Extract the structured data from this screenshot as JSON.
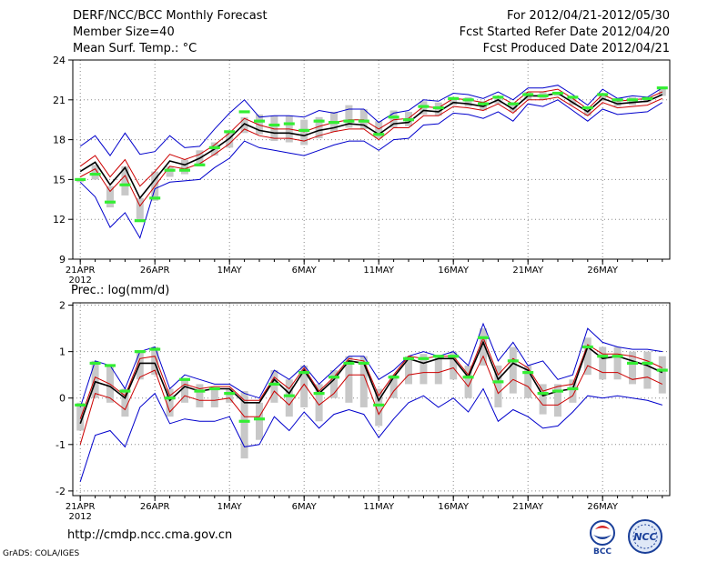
{
  "header": {
    "left": [
      "DERF/NCC/BCC Monthly Forecast",
      "Member Size=40",
      "Mean Surf. Temp.: °C"
    ],
    "right": [
      "For 2012/04/21-2012/05/30",
      "Fcst Started Refer Date 2012/04/20",
      "Fcst Produced Date 2012/04/21"
    ]
  },
  "footer": {
    "url": "http://cmdp.ncc.cma.gov.cn",
    "grads": "GrADS: COLA/IGES"
  },
  "logos": {
    "left": "BCC",
    "right": "NCC"
  },
  "colors": {
    "envelope": "#0000cc",
    "inner": "#cc0000",
    "mean": "#000000",
    "marker": "#33ee33",
    "bar": "#c8c8c8",
    "grid": "#888888"
  },
  "chart_data": [
    {
      "type": "line",
      "title": "Mean Surf. Temp.",
      "ylabel": "°C",
      "ylim": [
        9,
        24
      ],
      "yticks": [
        9,
        12,
        15,
        18,
        21,
        24
      ],
      "xlim": [
        0.5,
        40.5
      ],
      "xticks": [
        {
          "day": 1,
          "label": "21APR",
          "sub": "2012"
        },
        {
          "day": 6,
          "label": "26APR"
        },
        {
          "day": 11,
          "label": "1MAY"
        },
        {
          "day": 16,
          "label": "6MAY"
        },
        {
          "day": 21,
          "label": "11MAY"
        },
        {
          "day": 26,
          "label": "16MAY"
        },
        {
          "day": 31,
          "label": "21MAY"
        },
        {
          "day": 36,
          "label": "26MAY"
        }
      ],
      "x": [
        1,
        2,
        3,
        4,
        5,
        6,
        7,
        8,
        9,
        10,
        11,
        12,
        13,
        14,
        15,
        16,
        17,
        18,
        19,
        20,
        21,
        22,
        23,
        24,
        25,
        26,
        27,
        28,
        29,
        30,
        31,
        32,
        33,
        34,
        35,
        36,
        37,
        38,
        39,
        40
      ],
      "series": [
        {
          "name": "max",
          "values": [
            17.5,
            18.3,
            16.8,
            18.5,
            16.9,
            17.1,
            18.3,
            17.4,
            17.5,
            18.8,
            20,
            21,
            19.7,
            19.8,
            19.8,
            19.7,
            20.2,
            20,
            20.3,
            20.3,
            19.3,
            20,
            20.2,
            21,
            20.9,
            21.5,
            21.4,
            21.1,
            21.6,
            21,
            21.9,
            21.9,
            22.1,
            21.4,
            20.6,
            21.8,
            21.1,
            21.3,
            21.2,
            21.9
          ]
        },
        {
          "name": "upper",
          "values": [
            16,
            16.8,
            15.2,
            16.5,
            14.5,
            15.6,
            16.9,
            16.5,
            16.9,
            17.6,
            18.5,
            19.6,
            19.1,
            18.8,
            18.8,
            18.6,
            19,
            19.3,
            19.5,
            19.5,
            18.8,
            19.5,
            19.6,
            20.5,
            20.4,
            21.1,
            21,
            20.8,
            21.3,
            20.7,
            21.6,
            21.6,
            21.8,
            21.1,
            20.3,
            21.4,
            20.9,
            21,
            21.1,
            21.6
          ]
        },
        {
          "name": "mean",
          "values": [
            15.6,
            16.3,
            14.6,
            15.9,
            13.6,
            15,
            16.4,
            16.1,
            16.6,
            17.3,
            18.1,
            19.2,
            18.7,
            18.5,
            18.5,
            18.3,
            18.7,
            18.9,
            19.2,
            19.1,
            18.4,
            19.2,
            19.3,
            20.2,
            20.1,
            20.8,
            20.7,
            20.5,
            21,
            20.3,
            21.3,
            21.3,
            21.5,
            20.8,
            20.1,
            21.1,
            20.7,
            20.8,
            20.9,
            21.4
          ]
        },
        {
          "name": "lower",
          "values": [
            15.2,
            15.8,
            14.1,
            15.3,
            13,
            14.5,
            16,
            15.8,
            16.2,
            16.9,
            17.7,
            18.8,
            18.3,
            18.1,
            18.1,
            17.9,
            18.3,
            18.6,
            18.8,
            18.8,
            18,
            18.9,
            18.9,
            19.8,
            19.8,
            20.5,
            20.4,
            20.2,
            20.7,
            20,
            21,
            21,
            21.2,
            20.5,
            19.8,
            20.8,
            20.4,
            20.5,
            20.6,
            21.1
          ]
        },
        {
          "name": "min",
          "values": [
            14.8,
            13.7,
            11.4,
            12.5,
            10.6,
            14.3,
            14.8,
            14.9,
            15,
            15.9,
            16.6,
            17.9,
            17.4,
            17.2,
            17,
            16.8,
            17.2,
            17.6,
            17.9,
            17.9,
            17.2,
            18,
            18.1,
            19.1,
            19.2,
            20,
            19.9,
            19.6,
            20.1,
            19.4,
            20.7,
            20.5,
            21,
            20.2,
            19.4,
            20.3,
            19.9,
            20,
            20.1,
            20.8
          ]
        },
        {
          "name": "box_high",
          "values": [
            15.1,
            16.1,
            14.5,
            16,
            13.6,
            15.6,
            16,
            16.5,
            17.2,
            17.8,
            18.6,
            19.7,
            19.9,
            19.8,
            19.8,
            19.5,
            19.7,
            20.1,
            20.6,
            20.3,
            19.4,
            20.2,
            20.1,
            20.9,
            20.8,
            21.2,
            21.2,
            20.9,
            21.3,
            20.8,
            21.6,
            21.6,
            21.6,
            21.2,
            20.5,
            21.5,
            21,
            21.2,
            21.2,
            21.9
          ]
        },
        {
          "name": "box_low",
          "values": [
            14.8,
            15,
            12.9,
            13.8,
            11.8,
            13.4,
            15.2,
            15.4,
            16,
            16.8,
            17.4,
            18.5,
            18.4,
            17.9,
            17.8,
            17.6,
            18.1,
            18.6,
            18.9,
            18.8,
            18.1,
            18.9,
            19,
            19.9,
            19.8,
            20.6,
            20.5,
            20.2,
            20.7,
            20.1,
            21,
            21,
            21.3,
            20.6,
            19.8,
            20.9,
            20.5,
            20.6,
            20.8,
            21.3
          ]
        },
        {
          "name": "marker",
          "values": [
            15,
            15.4,
            13.3,
            14.6,
            11.9,
            13.6,
            15.7,
            15.7,
            16.1,
            17.4,
            18.6,
            20.1,
            19.4,
            19.1,
            19.2,
            18.7,
            19.4,
            19.3,
            19.4,
            19.4,
            18.4,
            19.7,
            19.5,
            20.5,
            20.4,
            21.1,
            21,
            20.7,
            21.2,
            20.7,
            21.4,
            21.3,
            21.5,
            21.2,
            20.4,
            21.4,
            21,
            21,
            21.1,
            21.9
          ]
        }
      ]
    },
    {
      "type": "line",
      "title": "Prec.: log(mm/d)",
      "ylabel": "log(mm/d)",
      "ylim": [
        -2.1,
        2.05
      ],
      "yticks": [
        -2,
        -1,
        0,
        1,
        2
      ],
      "xlim": [
        0.5,
        40.5
      ],
      "xticks": [
        {
          "day": 1,
          "label": "21APR",
          "sub": "2012"
        },
        {
          "day": 6,
          "label": "26APR"
        },
        {
          "day": 11,
          "label": "1MAY"
        },
        {
          "day": 16,
          "label": "6MAY"
        },
        {
          "day": 21,
          "label": "11MAY"
        },
        {
          "day": 26,
          "label": "16MAY"
        },
        {
          "day": 31,
          "label": "21MAY"
        },
        {
          "day": 36,
          "label": "26MAY"
        }
      ],
      "x": [
        1,
        2,
        3,
        4,
        5,
        6,
        7,
        8,
        9,
        10,
        11,
        12,
        13,
        14,
        15,
        16,
        17,
        18,
        19,
        20,
        21,
        22,
        23,
        24,
        25,
        26,
        27,
        28,
        29,
        30,
        31,
        32,
        33,
        34,
        35,
        36,
        37,
        38,
        39,
        40
      ],
      "series": [
        {
          "name": "max",
          "values": [
            -0.2,
            0.8,
            0.7,
            0.2,
            1,
            1.1,
            0.2,
            0.5,
            0.4,
            0.3,
            0.3,
            0.1,
            0,
            0.6,
            0.4,
            0.7,
            0.3,
            0.6,
            0.9,
            0.9,
            0.4,
            0.6,
            0.9,
            1,
            0.9,
            1,
            0.7,
            1.6,
            0.8,
            1.2,
            0.7,
            0.8,
            0.4,
            0.5,
            1.5,
            1.2,
            1.1,
            1.05,
            1.05,
            1
          ]
        },
        {
          "name": "upper",
          "values": [
            -0.45,
            0.45,
            0.3,
            0.05,
            0.85,
            0.9,
            0.05,
            0.3,
            0.2,
            0.25,
            0.25,
            -0.05,
            -0.05,
            0.45,
            0.2,
            0.65,
            0.15,
            0.45,
            0.85,
            0.8,
            0.05,
            0.5,
            0.9,
            0.85,
            0.9,
            0.9,
            0.5,
            1.3,
            0.5,
            0.85,
            0.65,
            0.15,
            0.25,
            0.3,
            1.15,
            0.95,
            0.95,
            0.9,
            0.8,
            0.65
          ]
        },
        {
          "name": "mean",
          "values": [
            -0.55,
            0.35,
            0.25,
            0,
            0.75,
            0.75,
            -0.05,
            0.25,
            0.15,
            0.2,
            0.2,
            -0.1,
            -0.1,
            0.4,
            0.1,
            0.6,
            0.1,
            0.4,
            0.8,
            0.75,
            -0.05,
            0.45,
            0.85,
            0.75,
            0.85,
            0.85,
            0.45,
            1.2,
            0.4,
            0.75,
            0.6,
            0.05,
            0.15,
            0.2,
            1.1,
            0.85,
            0.9,
            0.8,
            0.7,
            0.55
          ]
        },
        {
          "name": "lower",
          "values": [
            -1,
            0.1,
            0,
            -0.25,
            0.45,
            0.6,
            -0.3,
            0.05,
            -0.05,
            -0.05,
            0,
            -0.4,
            -0.4,
            0.15,
            -0.15,
            0.3,
            -0.15,
            0.1,
            0.5,
            0.5,
            -0.35,
            0.15,
            0.5,
            0.55,
            0.55,
            0.65,
            0.25,
            0.9,
            0.1,
            0.4,
            0.25,
            -0.15,
            -0.15,
            0.05,
            0.7,
            0.55,
            0.55,
            0.4,
            0.45,
            0.3
          ]
        },
        {
          "name": "min",
          "values": [
            -1.8,
            -0.8,
            -0.7,
            -1.05,
            -0.2,
            0.1,
            -0.55,
            -0.45,
            -0.5,
            -0.5,
            -0.4,
            -1.05,
            -1,
            -0.4,
            -0.7,
            -0.3,
            -0.65,
            -0.35,
            -0.25,
            -0.35,
            -0.85,
            -0.45,
            -0.1,
            0.05,
            -0.2,
            0,
            -0.3,
            0.2,
            -0.5,
            -0.25,
            -0.4,
            -0.65,
            -0.6,
            -0.3,
            0.05,
            0,
            0.05,
            0,
            -0.05,
            -0.15
          ]
        },
        {
          "name": "box_high",
          "values": [
            -0.1,
            0.8,
            0.7,
            0.2,
            1,
            1.1,
            0.2,
            0.4,
            0.3,
            0.2,
            0.2,
            0.15,
            -0.1,
            0.6,
            0.4,
            0.7,
            0.3,
            0.6,
            0.9,
            0.9,
            0.2,
            0.5,
            0.9,
            0.95,
            0.9,
            1,
            0.7,
            1.5,
            0.7,
            1.1,
            0.7,
            0.3,
            0.3,
            0.4,
            1.3,
            1.1,
            1.1,
            1.0,
            1.0,
            0.9
          ]
        },
        {
          "name": "box_low",
          "values": [
            -0.7,
            0,
            -0.1,
            -0.4,
            0.4,
            0.5,
            -0.4,
            -0.1,
            -0.2,
            -0.2,
            -0.1,
            -1.3,
            -0.9,
            -0.1,
            -0.4,
            -0.2,
            -0.5,
            0,
            -0.1,
            -0.2,
            -0.6,
            0,
            0.3,
            0.3,
            0.3,
            0.4,
            0,
            0.7,
            -0.2,
            0.1,
            0,
            -0.35,
            -0.4,
            -0.1,
            0.5,
            0.4,
            0.4,
            0.3,
            0.2,
            0.1
          ]
        },
        {
          "name": "marker",
          "values": [
            -0.15,
            0.75,
            0.7,
            0.15,
            1,
            1.05,
            0,
            0.4,
            0.15,
            0.2,
            0.1,
            -0.5,
            -0.45,
            0.3,
            0.05,
            0.55,
            0.1,
            0.45,
            0.75,
            0.75,
            -0.15,
            0.45,
            0.85,
            0.85,
            0.9,
            0.9,
            0.45,
            1.3,
            0.35,
            0.8,
            0.55,
            0.1,
            0.15,
            0.2,
            1.1,
            0.9,
            0.9,
            0.75,
            0.75,
            0.6
          ]
        }
      ]
    }
  ]
}
